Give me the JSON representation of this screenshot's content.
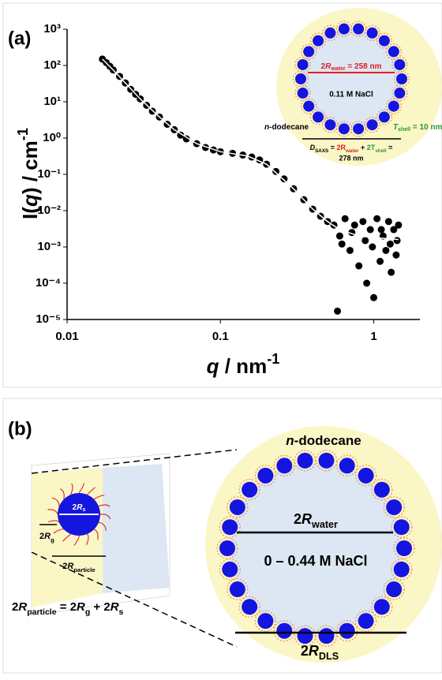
{
  "chart_data": {
    "type": "scatter",
    "x": [
      0.017,
      0.018,
      0.019,
      0.02,
      0.022,
      0.024,
      0.026,
      0.028,
      0.03,
      0.033,
      0.036,
      0.04,
      0.045,
      0.05,
      0.055,
      0.06,
      0.07,
      0.08,
      0.09,
      0.1,
      0.12,
      0.14,
      0.16,
      0.18,
      0.2,
      0.23,
      0.26,
      0.3,
      0.35,
      0.4,
      0.45,
      0.5,
      0.55,
      0.58,
      0.6,
      0.65,
      0.7,
      0.75,
      0.8,
      0.85,
      0.9,
      0.95,
      1.0,
      1.05,
      1.1,
      1.15,
      1.2,
      1.25,
      1.3,
      1.35,
      1.4,
      1.45,
      0.62,
      0.72,
      0.88,
      0.98,
      1.12,
      1.28,
      1.42
    ],
    "values": [
      150,
      120,
      95,
      75,
      50,
      33,
      22,
      16,
      12,
      8,
      5.5,
      3.8,
      2.4,
      1.7,
      1.2,
      0.95,
      0.7,
      0.55,
      0.47,
      0.42,
      0.38,
      0.34,
      0.3,
      0.25,
      0.19,
      0.12,
      0.075,
      0.04,
      0.02,
      0.011,
      0.007,
      0.005,
      0.004,
      1.7e-05,
      0.002,
      0.006,
      0.0008,
      0.004,
      0.0003,
      0.005,
      0.0001,
      0.003,
      4e-05,
      0.006,
      0.0004,
      0.002,
      0.0008,
      0.005,
      0.0002,
      0.003,
      0.0006,
      0.004,
      0.0012,
      0.0025,
      0.0015,
      0.001,
      0.003,
      0.0012,
      0.0015
    ],
    "color": "#000000",
    "fit": {
      "x": [
        0.017,
        0.02,
        0.03,
        0.04,
        0.05,
        0.07,
        0.1,
        0.15,
        0.2,
        0.3,
        0.4,
        0.5,
        0.6,
        0.8,
        1,
        1.45
      ],
      "values": [
        150,
        75,
        12,
        3.8,
        1.7,
        0.7,
        0.42,
        0.32,
        0.19,
        0.04,
        0.011,
        0.005,
        0.003,
        0.002,
        0.0018,
        0.0016
      ],
      "color": "#ffffff"
    },
    "log_x": true,
    "log_y": true,
    "xlim": [
      0.01,
      2
    ],
    "xticks": [
      0.01,
      0.1,
      1
    ],
    "ylim": [
      1e-05,
      1000
    ],
    "yticks": [
      {
        "value": 1e-05,
        "label": "10⁻⁵"
      },
      {
        "value": 0.0001,
        "label": "10⁻⁴"
      },
      {
        "value": 0.001,
        "label": "10⁻³"
      },
      {
        "value": 0.01,
        "label": "10⁻²"
      },
      {
        "value": 0.1,
        "label": "10⁻¹"
      },
      {
        "value": 1,
        "label": "10⁰"
      },
      {
        "value": 10,
        "label": "10¹"
      },
      {
        "value": 100,
        "label": "10²"
      },
      {
        "value": 1000,
        "label": "10³"
      }
    ],
    "x_label": [
      "q",
      " / nm",
      "-1"
    ],
    "y_label": [
      "I(",
      "q",
      ") / cm",
      "-1"
    ]
  },
  "panel_a_label": "(a)",
  "inset": {
    "water": [
      "2",
      "R",
      "water",
      " = 258 nm"
    ],
    "salt": "0.11 M NaCl",
    "solvent": [
      "n",
      "-dodecane"
    ],
    "shell": [
      "T",
      "shell",
      " = 10 nm"
    ],
    "dsaxs": [
      "D",
      "SAXS",
      " = ",
      "2R",
      "water",
      " + ",
      "2T",
      "shell",
      " ="
    ],
    "dsaxs_value": "278 nm"
  },
  "panel_b_label": "(b)",
  "panel_b": {
    "solvent": [
      "n",
      "-dodecane"
    ],
    "water": [
      "2",
      "R",
      "water"
    ],
    "salt": "0 – 0.44  M NaCl",
    "dls": [
      "2",
      "R",
      "DLS"
    ],
    "rs": [
      "2",
      "R",
      "s"
    ],
    "rg": [
      "2",
      "R",
      "g"
    ],
    "rparticle": [
      "2",
      "R",
      "particle"
    ],
    "formula": [
      "2",
      "R",
      "particle",
      " = 2",
      "R",
      "g",
      " + 2",
      "R",
      "s"
    ]
  }
}
